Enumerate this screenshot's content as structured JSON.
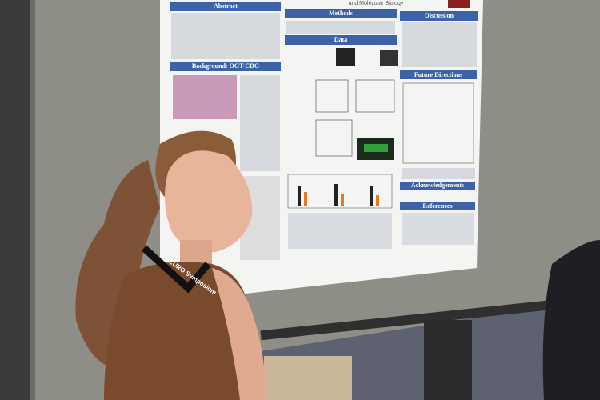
{
  "poster": {
    "title_fragment": "and Molecular Biology",
    "sections": [
      "Abstract",
      "Methods",
      "Discussion",
      "Background: OGT-CDG",
      "Data",
      "Future Directions",
      "Acknowledgements",
      "References"
    ]
  },
  "lanyard": {
    "text": "CURO Symposium"
  }
}
